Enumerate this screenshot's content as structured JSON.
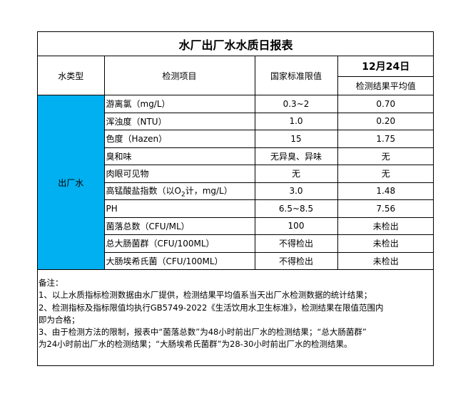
{
  "title": "水厂出厂水水质日报表",
  "headers": {
    "water_type": "水类型",
    "item": "检测项目",
    "standard": "国家标准限值",
    "date": "12月24日",
    "result": "检测结果平均值"
  },
  "water_type_value": "出厂水",
  "colors": {
    "water_type_cell": "#00b0f0"
  },
  "rows": [
    {
      "item": "游离氯（mg/L）",
      "standard": "0.3~2",
      "result": "0.70"
    },
    {
      "item": "浑浊度（NTU）",
      "standard": "1.0",
      "result": "0.20"
    },
    {
      "item": "色度（Hazen）",
      "standard": "15",
      "result": "1.75"
    },
    {
      "item": "臭和味",
      "standard": "无异臭、异味",
      "result": "无"
    },
    {
      "item": "肉眼可见物",
      "standard": "无",
      "result": "无"
    },
    {
      "item": "高锰酸盐指数（以O2计，mg/L）",
      "standard": "3.0",
      "result": "1.48"
    },
    {
      "item": "PH",
      "standard": "6.5~8.5",
      "result": "7.56"
    },
    {
      "item": "菌落总数（CFU/ML）",
      "standard": "100",
      "result": "未检出"
    },
    {
      "item": "总大肠菌群（CFU/100ML）",
      "standard": "不得检出",
      "result": "未检出"
    },
    {
      "item": "大肠埃希氏菌（CFU/100ML）",
      "standard": "不得检出",
      "result": "未检出"
    }
  ],
  "notes": [
    "备注：",
    "1、以上水质指标检测数据由水厂提供，检测结果平均值系当天出厂水检测数据的统计结果；",
    "2、检测指标及指标限值均执行GB5749-2022《生活饮用水卫生标准》，检测结果在限值范围内",
    "即为合格；",
    "3、由于检测方法的限制，报表中“菌落总数”为48小时前出厂水的检测结果；“总大肠菌群”",
    "为24小时前出厂水的检测结果；“大肠埃希氏菌群”为28-30小时前出厂水的检测结果。"
  ]
}
